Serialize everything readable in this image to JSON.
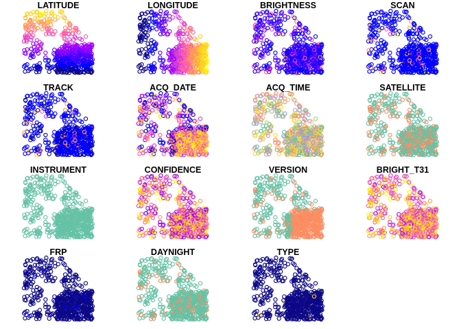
{
  "chart_data": {
    "type": "scatter",
    "layout": {
      "rows": 4,
      "cols": 4
    },
    "marker": "open-circle",
    "axes": "none",
    "grid": false,
    "legend": false,
    "shared_geometry": true,
    "panels": [
      {
        "title": "LATITUDE",
        "palette": "sf",
        "variable_kind": "continuous"
      },
      {
        "title": "LONGITUDE",
        "palette": "sf",
        "variable_kind": "continuous"
      },
      {
        "title": "BRIGHTNESS",
        "palette": "sf",
        "variable_kind": "continuous"
      },
      {
        "title": "SCAN",
        "palette": "sf",
        "variable_kind": "continuous"
      },
      {
        "title": "TRACK",
        "palette": "sf",
        "variable_kind": "continuous"
      },
      {
        "title": "ACQ_DATE",
        "palette": "sf",
        "variable_kind": "date"
      },
      {
        "title": "ACQ_TIME",
        "palette": "qual",
        "variable_kind": "categorical"
      },
      {
        "title": "SATELLITE",
        "palette": "qual",
        "variable_kind": "categorical"
      },
      {
        "title": "INSTRUMENT",
        "palette": "qual",
        "variable_kind": "categorical"
      },
      {
        "title": "CONFIDENCE",
        "palette": "sf",
        "variable_kind": "continuous"
      },
      {
        "title": "VERSION",
        "palette": "qual",
        "variable_kind": "categorical"
      },
      {
        "title": "BRIGHT_T31",
        "palette": "sf",
        "variable_kind": "continuous"
      },
      {
        "title": "FRP",
        "palette": "sf",
        "variable_kind": "continuous"
      },
      {
        "title": "DAYNIGHT",
        "palette": "qual",
        "variable_kind": "categorical"
      },
      {
        "title": "TYPE",
        "palette": "sf",
        "variable_kind": "continuous"
      }
    ]
  },
  "colors": {
    "sf_palette": [
      "#0D0887",
      "#0000FF",
      "#4B00FF",
      "#9A00FF",
      "#D13CD9",
      "#FF5FA8",
      "#FF9A5A",
      "#FFD21E",
      "#FFFF00"
    ],
    "qual_palette": [
      "#66C2A5",
      "#FC8D62",
      "#8DA0CB",
      "#E78AC3",
      "#A6D854",
      "#FFD92F",
      "#E5C494",
      "#B3B3B3"
    ],
    "title_color": "#000000",
    "background": "#FFFFFF"
  }
}
